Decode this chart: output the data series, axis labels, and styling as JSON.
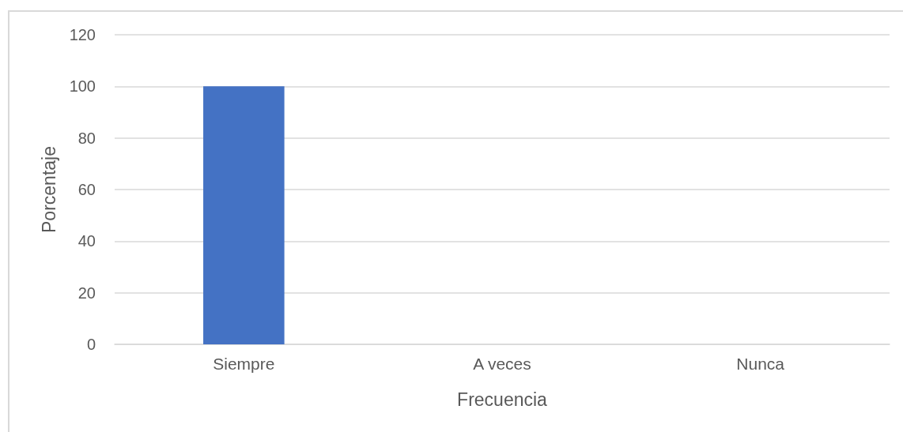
{
  "chart_data": {
    "type": "bar",
    "xlabel": "Frecuencia",
    "ylabel": "Porcentaje",
    "categories": [
      "Siempre",
      "A veces",
      "Nunca"
    ],
    "values": [
      100,
      0,
      0
    ],
    "color": "#4472c4",
    "ylim": [
      0,
      120
    ],
    "yticks": [
      0,
      20,
      40,
      60,
      80,
      100,
      120
    ],
    "grid": "y"
  }
}
